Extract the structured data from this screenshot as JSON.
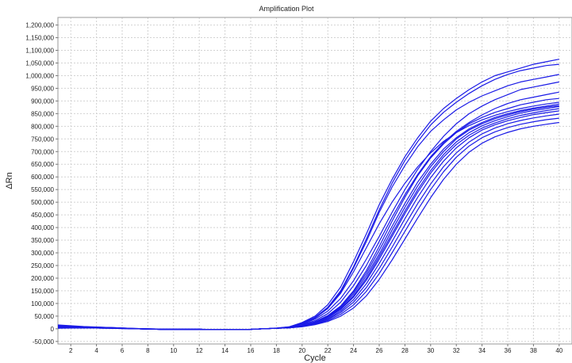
{
  "chart_data": {
    "type": "line",
    "title": "Amplification Plot",
    "xlabel": "Cycle",
    "ylabel": "ΔRn",
    "xlim": [
      1,
      41
    ],
    "ylim": [
      -60000,
      1230000
    ],
    "grid": true,
    "x_ticks": [
      2,
      4,
      6,
      8,
      10,
      12,
      14,
      16,
      18,
      20,
      22,
      24,
      26,
      28,
      30,
      32,
      34,
      36,
      38,
      40
    ],
    "x_tick_labels": [
      "2",
      "4",
      "6",
      "8",
      "10",
      "12",
      "14",
      "16",
      "18",
      "20",
      "22",
      "24",
      "26",
      "28",
      "30",
      "32",
      "34",
      "36",
      "38",
      "40"
    ],
    "y_ticks": [
      -50000,
      0,
      50000,
      100000,
      150000,
      200000,
      250000,
      300000,
      350000,
      400000,
      450000,
      500000,
      550000,
      600000,
      650000,
      700000,
      750000,
      800000,
      850000,
      900000,
      950000,
      1000000,
      1050000,
      1100000,
      1150000,
      1200000
    ],
    "y_tick_labels": [
      "-50,000",
      "0",
      "50,000",
      "100,000",
      "150,000",
      "200,000",
      "250,000",
      "300,000",
      "350,000",
      "400,000",
      "450,000",
      "500,000",
      "550,000",
      "600,000",
      "650,000",
      "700,000",
      "750,000",
      "800,000",
      "850,000",
      "900,000",
      "950,000",
      "1,000,000",
      "1,050,000",
      "1,100,000",
      "1,150,000",
      "1,200,000"
    ],
    "line_color": "#1a1ae6",
    "x": [
      1,
      2,
      3,
      4,
      5,
      6,
      7,
      8,
      9,
      10,
      11,
      12,
      13,
      14,
      15,
      16,
      17,
      18,
      19,
      20,
      21,
      22,
      23,
      24,
      25,
      26,
      27,
      28,
      29,
      30,
      31,
      32,
      33,
      34,
      35,
      36,
      37,
      38,
      39,
      40
    ],
    "series": [
      {
        "values": [
          8000,
          8000,
          6000,
          5000,
          4000,
          2000,
          0,
          -1000,
          -2000,
          -2000,
          -2000,
          -2000,
          -3000,
          -3000,
          -3000,
          -2000,
          0,
          2000,
          8000,
          25000,
          50000,
          95000,
          165000,
          265000,
          375000,
          490000,
          590000,
          680000,
          755000,
          820000,
          870000,
          910000,
          945000,
          975000,
          1000000,
          1015000,
          1030000,
          1045000,
          1055000,
          1065000
        ]
      },
      {
        "values": [
          6000,
          6000,
          5000,
          4000,
          3000,
          2000,
          0,
          -1000,
          -2000,
          -2000,
          -2000,
          -2000,
          -3000,
          -3000,
          -3000,
          -2000,
          0,
          2000,
          7000,
          22000,
          45000,
          85000,
          150000,
          245000,
          355000,
          470000,
          575000,
          665000,
          740000,
          805000,
          855000,
          895000,
          930000,
          960000,
          985000,
          1005000,
          1020000,
          1030000,
          1040000,
          1045000
        ]
      },
      {
        "values": [
          10000,
          9000,
          7000,
          6000,
          5000,
          3000,
          1000,
          0,
          -1000,
          -1000,
          -2000,
          -2000,
          -3000,
          -3000,
          -3000,
          -2000,
          0,
          3000,
          8000,
          22000,
          45000,
          82000,
          145000,
          240000,
          345000,
          460000,
          560000,
          645000,
          720000,
          780000,
          825000,
          865000,
          895000,
          920000,
          940000,
          960000,
          975000,
          985000,
          995000,
          1005000
        ]
      },
      {
        "values": [
          5000,
          5000,
          4000,
          4000,
          3000,
          2000,
          0,
          -1000,
          -2000,
          -2000,
          -2000,
          -2000,
          -3000,
          -3000,
          -3000,
          -2000,
          0,
          2000,
          6000,
          18000,
          38000,
          70000,
          120000,
          190000,
          275000,
          365000,
          460000,
          550000,
          630000,
          700000,
          760000,
          810000,
          850000,
          880000,
          905000,
          925000,
          945000,
          955000,
          965000,
          975000
        ]
      },
      {
        "values": [
          12000,
          10000,
          8000,
          6000,
          5000,
          3000,
          1000,
          0,
          -1000,
          -1000,
          -2000,
          -2000,
          -3000,
          -3000,
          -3000,
          -2000,
          0,
          2000,
          6000,
          16000,
          32000,
          60000,
          105000,
          170000,
          250000,
          345000,
          440000,
          530000,
          610000,
          680000,
          735000,
          780000,
          815000,
          845000,
          870000,
          890000,
          905000,
          915000,
          925000,
          935000
        ]
      },
      {
        "values": [
          15000,
          12000,
          9000,
          7000,
          5000,
          3000,
          1000,
          0,
          -1000,
          -1000,
          -2000,
          -1000,
          -3000,
          -3000,
          -3000,
          -2000,
          0,
          2000,
          5000,
          14000,
          28000,
          52000,
          90000,
          150000,
          230000,
          325000,
          425000,
          520000,
          605000,
          675000,
          730000,
          775000,
          810000,
          835000,
          855000,
          870000,
          885000,
          895000,
          905000,
          910000
        ]
      },
      {
        "values": [
          4000,
          4000,
          4000,
          3000,
          2000,
          1000,
          0,
          -1000,
          -2000,
          -2000,
          -2000,
          -2000,
          -3000,
          -3000,
          -3000,
          -2000,
          0,
          2000,
          5000,
          13000,
          27000,
          50000,
          88000,
          145000,
          220000,
          310000,
          405000,
          495000,
          580000,
          650000,
          710000,
          755000,
          790000,
          815000,
          835000,
          850000,
          862000,
          872000,
          880000,
          888000
        ]
      },
      {
        "values": [
          7000,
          6000,
          5000,
          4000,
          3000,
          2000,
          0,
          -1000,
          -2000,
          -2000,
          -2000,
          -2000,
          -3000,
          -3000,
          -3000,
          -2000,
          0,
          2000,
          5000,
          13000,
          26000,
          48000,
          84000,
          138000,
          210000,
          295000,
          390000,
          480000,
          565000,
          640000,
          700000,
          750000,
          785000,
          810000,
          830000,
          845000,
          858000,
          868000,
          876000,
          882000
        ]
      },
      {
        "values": [
          9000,
          8000,
          6000,
          5000,
          4000,
          2000,
          0,
          -1000,
          -1000,
          -2000,
          -2000,
          -2000,
          -3000,
          -3000,
          -3000,
          -2000,
          0,
          2000,
          5000,
          12000,
          25000,
          46000,
          80000,
          130000,
          200000,
          285000,
          375000,
          465000,
          550000,
          625000,
          688000,
          738000,
          775000,
          802000,
          822000,
          838000,
          852000,
          862000,
          870000,
          878000
        ]
      },
      {
        "values": [
          3000,
          3000,
          3000,
          3000,
          2000,
          1000,
          0,
          -1000,
          -2000,
          -2000,
          -2000,
          -2000,
          -3000,
          -3000,
          -3000,
          -2000,
          0,
          2000,
          5000,
          12000,
          24000,
          44000,
          76000,
          125000,
          192000,
          275000,
          365000,
          455000,
          540000,
          615000,
          678000,
          728000,
          765000,
          793000,
          813000,
          830000,
          843000,
          853000,
          862000,
          870000
        ]
      },
      {
        "values": [
          6000,
          5000,
          5000,
          4000,
          3000,
          2000,
          0,
          -1000,
          -2000,
          -2000,
          -2000,
          -2000,
          -3000,
          -3000,
          -3000,
          -2000,
          0,
          2000,
          4000,
          11000,
          22000,
          40000,
          70000,
          115000,
          178000,
          258000,
          345000,
          435000,
          520000,
          597000,
          662000,
          715000,
          755000,
          785000,
          806000,
          822000,
          835000,
          846000,
          854000,
          861000
        ]
      },
      {
        "values": [
          11000,
          9000,
          7000,
          5000,
          4000,
          2000,
          0,
          -1000,
          -1000,
          -2000,
          -2000,
          -2000,
          -3000,
          -3000,
          -3000,
          -2000,
          0,
          2000,
          4000,
          10000,
          20000,
          37000,
          64000,
          105000,
          163000,
          238000,
          322000,
          410000,
          495000,
          572000,
          640000,
          695000,
          738000,
          770000,
          793000,
          810000,
          823000,
          833000,
          841000,
          848000
        ]
      },
      {
        "values": [
          5000,
          5000,
          4000,
          4000,
          3000,
          2000,
          0,
          -1000,
          -2000,
          -2000,
          -2000,
          -2000,
          -3000,
          -3000,
          -3000,
          -2000,
          0,
          2000,
          4000,
          9000,
          18000,
          33000,
          57000,
          94000,
          148000,
          218000,
          300000,
          385000,
          470000,
          550000,
          620000,
          678000,
          722000,
          755000,
          778000,
          795000,
          808000,
          818000,
          826000,
          832000
        ]
      },
      {
        "values": [
          8000,
          7000,
          6000,
          5000,
          3000,
          2000,
          0,
          -1000,
          -2000,
          -2000,
          -2000,
          -2000,
          -3000,
          -3000,
          -3000,
          -2000,
          0,
          2000,
          4000,
          8000,
          16000,
          29000,
          50000,
          82000,
          130000,
          195000,
          272000,
          355000,
          438000,
          518000,
          590000,
          650000,
          698000,
          733000,
          758000,
          776000,
          790000,
          800000,
          808000,
          815000
        ]
      },
      {
        "values": [
          2000,
          3000,
          3000,
          3000,
          2000,
          1000,
          0,
          -1000,
          -2000,
          -2000,
          -2000,
          -2000,
          -3000,
          -3000,
          -3000,
          -2000,
          0,
          2000,
          6000,
          19000,
          42000,
          80000,
          140000,
          225000,
          320000,
          415000,
          500000,
          575000,
          640000,
          695000,
          740000,
          775000,
          803000,
          825000,
          843000,
          858000,
          870000,
          880000,
          888000,
          895000
        ]
      }
    ]
  }
}
